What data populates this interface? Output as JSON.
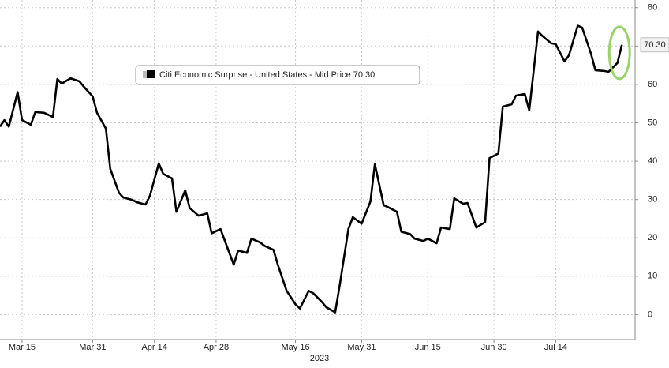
{
  "chart_data": {
    "type": "line",
    "series": [
      {
        "name": "Citi Economic Surprise - United States - Mid Price 70.30",
        "color": "#000000",
        "x": [
          "2023-03-10",
          "2023-03-11",
          "2023-03-12",
          "2023-03-14",
          "2023-03-15",
          "2023-03-17",
          "2023-03-18",
          "2023-03-20",
          "2023-03-22",
          "2023-03-23",
          "2023-03-24",
          "2023-03-26",
          "2023-03-28",
          "2023-03-29",
          "2023-03-31",
          "2023-04-01",
          "2023-04-03",
          "2023-04-04",
          "2023-04-06",
          "2023-04-07",
          "2023-04-09",
          "2023-04-10",
          "2023-04-12",
          "2023-04-13",
          "2023-04-15",
          "2023-04-16",
          "2023-04-18",
          "2023-04-19",
          "2023-04-21",
          "2023-04-22",
          "2023-04-24",
          "2023-04-26",
          "2023-04-27",
          "2023-04-29",
          "2023-04-30",
          "2023-05-02",
          "2023-05-03",
          "2023-05-05",
          "2023-05-06",
          "2023-05-08",
          "2023-05-09",
          "2023-05-11",
          "2023-05-12",
          "2023-05-14",
          "2023-05-16",
          "2023-05-17",
          "2023-05-19",
          "2023-05-20",
          "2023-05-22",
          "2023-05-23",
          "2023-05-25",
          "2023-05-26",
          "2023-05-28",
          "2023-05-29",
          "2023-05-31",
          "2023-06-02",
          "2023-06-03",
          "2023-06-05",
          "2023-06-06",
          "2023-06-08",
          "2023-06-09",
          "2023-06-11",
          "2023-06-12",
          "2023-06-14",
          "2023-06-15",
          "2023-06-17",
          "2023-06-18",
          "2023-06-20",
          "2023-06-21",
          "2023-06-23",
          "2023-06-24",
          "2023-06-26",
          "2023-06-28",
          "2023-06-29",
          "2023-07-01",
          "2023-07-02",
          "2023-07-04",
          "2023-07-05",
          "2023-07-07",
          "2023-07-08",
          "2023-07-10",
          "2023-07-11",
          "2023-07-13",
          "2023-07-14",
          "2023-07-16",
          "2023-07-17",
          "2023-07-19",
          "2023-07-20",
          "2023-07-22",
          "2023-07-23",
          "2023-07-25",
          "2023-07-26",
          "2023-07-28",
          "2023-07-29"
        ],
        "values": [
          49,
          50.7,
          49,
          58,
          50.7,
          49.5,
          52.8,
          52.6,
          51.5,
          61.4,
          60.2,
          61.6,
          60.8,
          59.4,
          56.9,
          52.6,
          48.5,
          38,
          31.7,
          30.5,
          29.9,
          29.3,
          28.7,
          31,
          39.4,
          36.7,
          35.5,
          26.8,
          32.4,
          27.8,
          25.8,
          26.4,
          21.2,
          22.3,
          19.2,
          13,
          16.7,
          16.1,
          19.8,
          18.8,
          17.9,
          16.9,
          13,
          6.2,
          2.7,
          1.6,
          6.2,
          5.6,
          3.3,
          1.9,
          0.6,
          7.4,
          22.3,
          25.4,
          23.7,
          29.5,
          39.2,
          28.5,
          28,
          26.8,
          21.6,
          21,
          19.8,
          19.2,
          19.8,
          18.6,
          22.7,
          22.3,
          30.3,
          28.9,
          29.1,
          22.7,
          24.1,
          40.8,
          42,
          54.2,
          54.8,
          57.1,
          57.5,
          53.2,
          73.8,
          72.6,
          70.7,
          70.5,
          66,
          67.6,
          75.3,
          74.8,
          68,
          63.7,
          63.5,
          63.3,
          65.6,
          70.3
        ],
        "last_label": "70.30"
      }
    ],
    "xlim": [
      "2023-03-10",
      "2023-08-01"
    ],
    "xticks": [
      {
        "value": "2023-03-15",
        "label": "Mar 15"
      },
      {
        "value": "2023-03-31",
        "label": "Mar 31"
      },
      {
        "value": "2023-04-14",
        "label": "Apr 14"
      },
      {
        "value": "2023-04-28",
        "label": "Apr 28"
      },
      {
        "value": "2023-05-16",
        "label": "May 16"
      },
      {
        "value": "2023-05-31",
        "label": "May 31"
      },
      {
        "value": "2023-06-15",
        "label": "Jun 15"
      },
      {
        "value": "2023-06-30",
        "label": "Jun 30"
      },
      {
        "value": "2023-07-14",
        "label": "Jul 14"
      }
    ],
    "x_axis_label": "2023",
    "ylim": [
      -6.5,
      82
    ],
    "yticks": [
      0,
      10,
      20,
      30,
      40,
      50,
      60,
      70,
      80
    ],
    "grid": true,
    "legend": "top-left"
  }
}
